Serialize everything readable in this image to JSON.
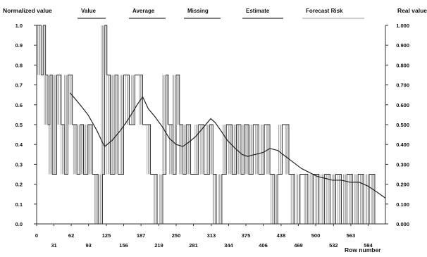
{
  "chart_data": {
    "type": "line",
    "title": "",
    "left_axis_label": "Normalized value",
    "right_axis_label": "Real value",
    "xlabel": "Row number",
    "legend": [
      "Value",
      "Average",
      "Missing",
      "Estimate",
      "Forecast Risk"
    ],
    "colors": {
      "value": "#222222",
      "average": "#222222",
      "risk": "#bbbbbb",
      "grid": "#cccccc"
    },
    "xlim": [
      0,
      625
    ],
    "ylim": [
      0,
      1
    ],
    "x_ticks": [
      "0",
      "31",
      "62",
      "93",
      "125",
      "156",
      "187",
      "219",
      "250",
      "281",
      "313",
      "344",
      "375",
      "406",
      "438",
      "469",
      "500",
      "532",
      "563",
      "594"
    ],
    "x_tick_values": [
      0,
      31,
      62,
      93,
      125,
      156,
      187,
      219,
      250,
      281,
      313,
      344,
      375,
      406,
      438,
      469,
      500,
      532,
      563,
      594
    ],
    "y_ticks_left": [
      "0.0",
      "0.1",
      "0.2",
      "0.3",
      "0.4",
      "0.5",
      "0.6",
      "0.7",
      "0.8",
      "0.9",
      "1.0"
    ],
    "y_ticks_right": [
      "0.000",
      "0.100",
      "0.200",
      "0.300",
      "0.400",
      "0.500",
      "0.600",
      "0.700",
      "0.800",
      "0.900",
      "1.000"
    ],
    "grid": false,
    "series": [
      {
        "name": "Value",
        "x": [
          0,
          8,
          12,
          16,
          20,
          24,
          28,
          36,
          44,
          50,
          56,
          64,
          72,
          78,
          84,
          92,
          100,
          110,
          118,
          122,
          126,
          132,
          140,
          146,
          156,
          166,
          176,
          190,
          204,
          216,
          226,
          232,
          236,
          244,
          250,
          256,
          262,
          268,
          276,
          290,
          300,
          310,
          316,
          322,
          332,
          340,
          350,
          358,
          366,
          372,
          380,
          388,
          398,
          408,
          418,
          426,
          432,
          440,
          452,
          462,
          472,
          486,
          496,
          506,
          516,
          526,
          536,
          546,
          556,
          566,
          576,
          586,
          596,
          606,
          620
        ],
        "y": [
          1.0,
          0.75,
          1.0,
          0.75,
          0.5,
          0.75,
          0.25,
          0.75,
          0.5,
          0.25,
          0.75,
          0.5,
          0.25,
          0.5,
          0.25,
          0.5,
          0.25,
          0.0,
          0.25,
          1.0,
          0.75,
          0.25,
          0.75,
          0.25,
          0.75,
          0.5,
          0.75,
          0.5,
          0.25,
          0.0,
          0.25,
          0.75,
          0.5,
          0.25,
          0.75,
          0.5,
          0.25,
          0.5,
          0.25,
          0.5,
          0.25,
          0.5,
          0.25,
          0.0,
          0.25,
          0.5,
          0.25,
          0.5,
          0.25,
          0.5,
          0.25,
          0.5,
          0.25,
          0.5,
          0.25,
          0.0,
          0.25,
          0.5,
          0.25,
          0.0,
          0.25,
          0.0,
          0.25,
          0.0,
          0.25,
          0.0,
          0.25,
          0.0,
          0.25,
          0.0,
          0.25,
          0.0,
          0.25,
          0.0,
          0.0
        ]
      },
      {
        "name": "Average",
        "x": [
          60,
          75,
          92,
          108,
          118,
          122,
          135,
          150,
          165,
          180,
          190,
          200,
          212,
          225,
          238,
          250,
          262,
          272,
          285,
          300,
          312,
          320,
          330,
          342,
          356,
          368,
          378,
          392,
          406,
          418,
          432,
          446,
          460,
          474,
          488,
          502,
          516,
          530,
          546,
          562,
          578,
          594,
          610,
          625
        ],
        "y": [
          0.66,
          0.61,
          0.55,
          0.47,
          0.41,
          0.39,
          0.42,
          0.47,
          0.53,
          0.6,
          0.64,
          0.58,
          0.54,
          0.49,
          0.43,
          0.4,
          0.39,
          0.41,
          0.44,
          0.49,
          0.53,
          0.51,
          0.47,
          0.42,
          0.38,
          0.35,
          0.34,
          0.35,
          0.36,
          0.38,
          0.37,
          0.34,
          0.31,
          0.28,
          0.26,
          0.24,
          0.23,
          0.22,
          0.22,
          0.21,
          0.21,
          0.19,
          0.16,
          0.13
        ]
      }
    ]
  }
}
